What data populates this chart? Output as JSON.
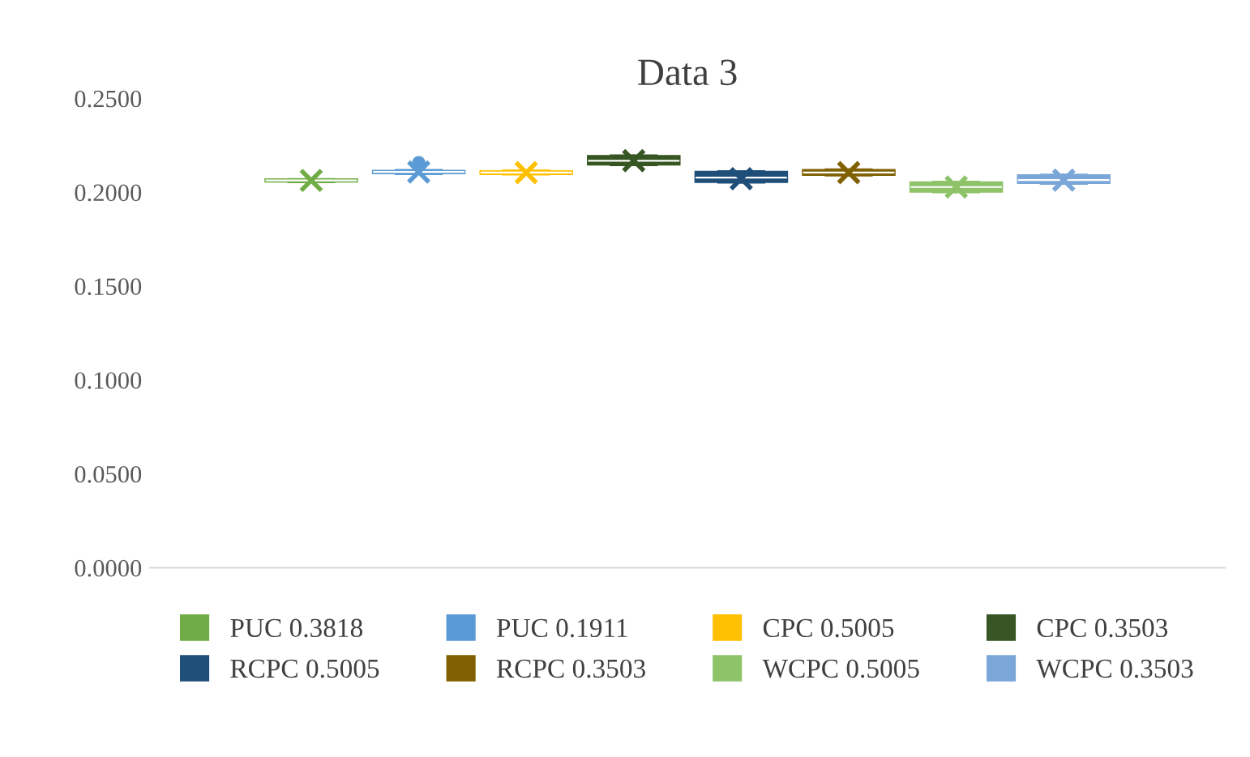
{
  "chart_data": {
    "type": "box",
    "title": "Data 3",
    "categories": [
      null
    ],
    "ylim": [
      0,
      0.25
    ],
    "yticks": [
      {
        "value": 0,
        "label": "0.0000"
      },
      {
        "value": 0.05,
        "label": "0.0500"
      },
      {
        "value": 0.1,
        "label": "0.1000"
      },
      {
        "value": 0.15,
        "label": "0.1500"
      },
      {
        "value": 0.2,
        "label": "0.2000"
      },
      {
        "value": 0.25,
        "label": "0.2500"
      }
    ],
    "grid": false,
    "legend": "bottom",
    "series": [
      {
        "name": "PUC 0.3818",
        "color": "#70ad47",
        "boxes": [
          {
            "low": 0.2055,
            "q1": 0.2058,
            "median": 0.2063,
            "q3": 0.2068,
            "high": 0.207,
            "mean": 0.2063
          }
        ]
      },
      {
        "name": "PUC 0.1911",
        "color": "#5b9bd5",
        "boxes": [
          {
            "low": 0.2098,
            "q1": 0.2102,
            "median": 0.2108,
            "q3": 0.2114,
            "high": 0.2118,
            "mean": 0.2108,
            "outliers": [
              0.2157
            ]
          }
        ]
      },
      {
        "name": "CPC 0.5005",
        "color": "#ffc000",
        "boxes": [
          {
            "low": 0.2095,
            "q1": 0.2098,
            "median": 0.2105,
            "q3": 0.2112,
            "high": 0.2116,
            "mean": 0.2105
          }
        ]
      },
      {
        "name": "CPC 0.3503",
        "color": "#375623",
        "boxes": [
          {
            "low": 0.2145,
            "q1": 0.2148,
            "median": 0.2168,
            "q3": 0.2192,
            "high": 0.2196,
            "mean": 0.2168
          }
        ]
      },
      {
        "name": "RCPC 0.5005",
        "color": "#1f4e79",
        "boxes": [
          {
            "low": 0.2052,
            "q1": 0.2056,
            "median": 0.2078,
            "q3": 0.2108,
            "high": 0.2112,
            "mean": 0.2072
          }
        ]
      },
      {
        "name": "RCPC 0.3503",
        "color": "#806000",
        "boxes": [
          {
            "low": 0.209,
            "q1": 0.2093,
            "median": 0.2105,
            "q3": 0.2118,
            "high": 0.2121,
            "mean": 0.2105
          }
        ]
      },
      {
        "name": "WCPC 0.5005",
        "color": "#8fc36a",
        "boxes": [
          {
            "low": 0.2,
            "q1": 0.2004,
            "median": 0.2028,
            "q3": 0.2052,
            "high": 0.2056,
            "mean": 0.2028
          }
        ]
      },
      {
        "name": "WCPC 0.3503",
        "color": "#7aa6d8",
        "boxes": [
          {
            "low": 0.2046,
            "q1": 0.205,
            "median": 0.2065,
            "q3": 0.209,
            "high": 0.2093,
            "mean": 0.2065
          }
        ]
      }
    ]
  }
}
